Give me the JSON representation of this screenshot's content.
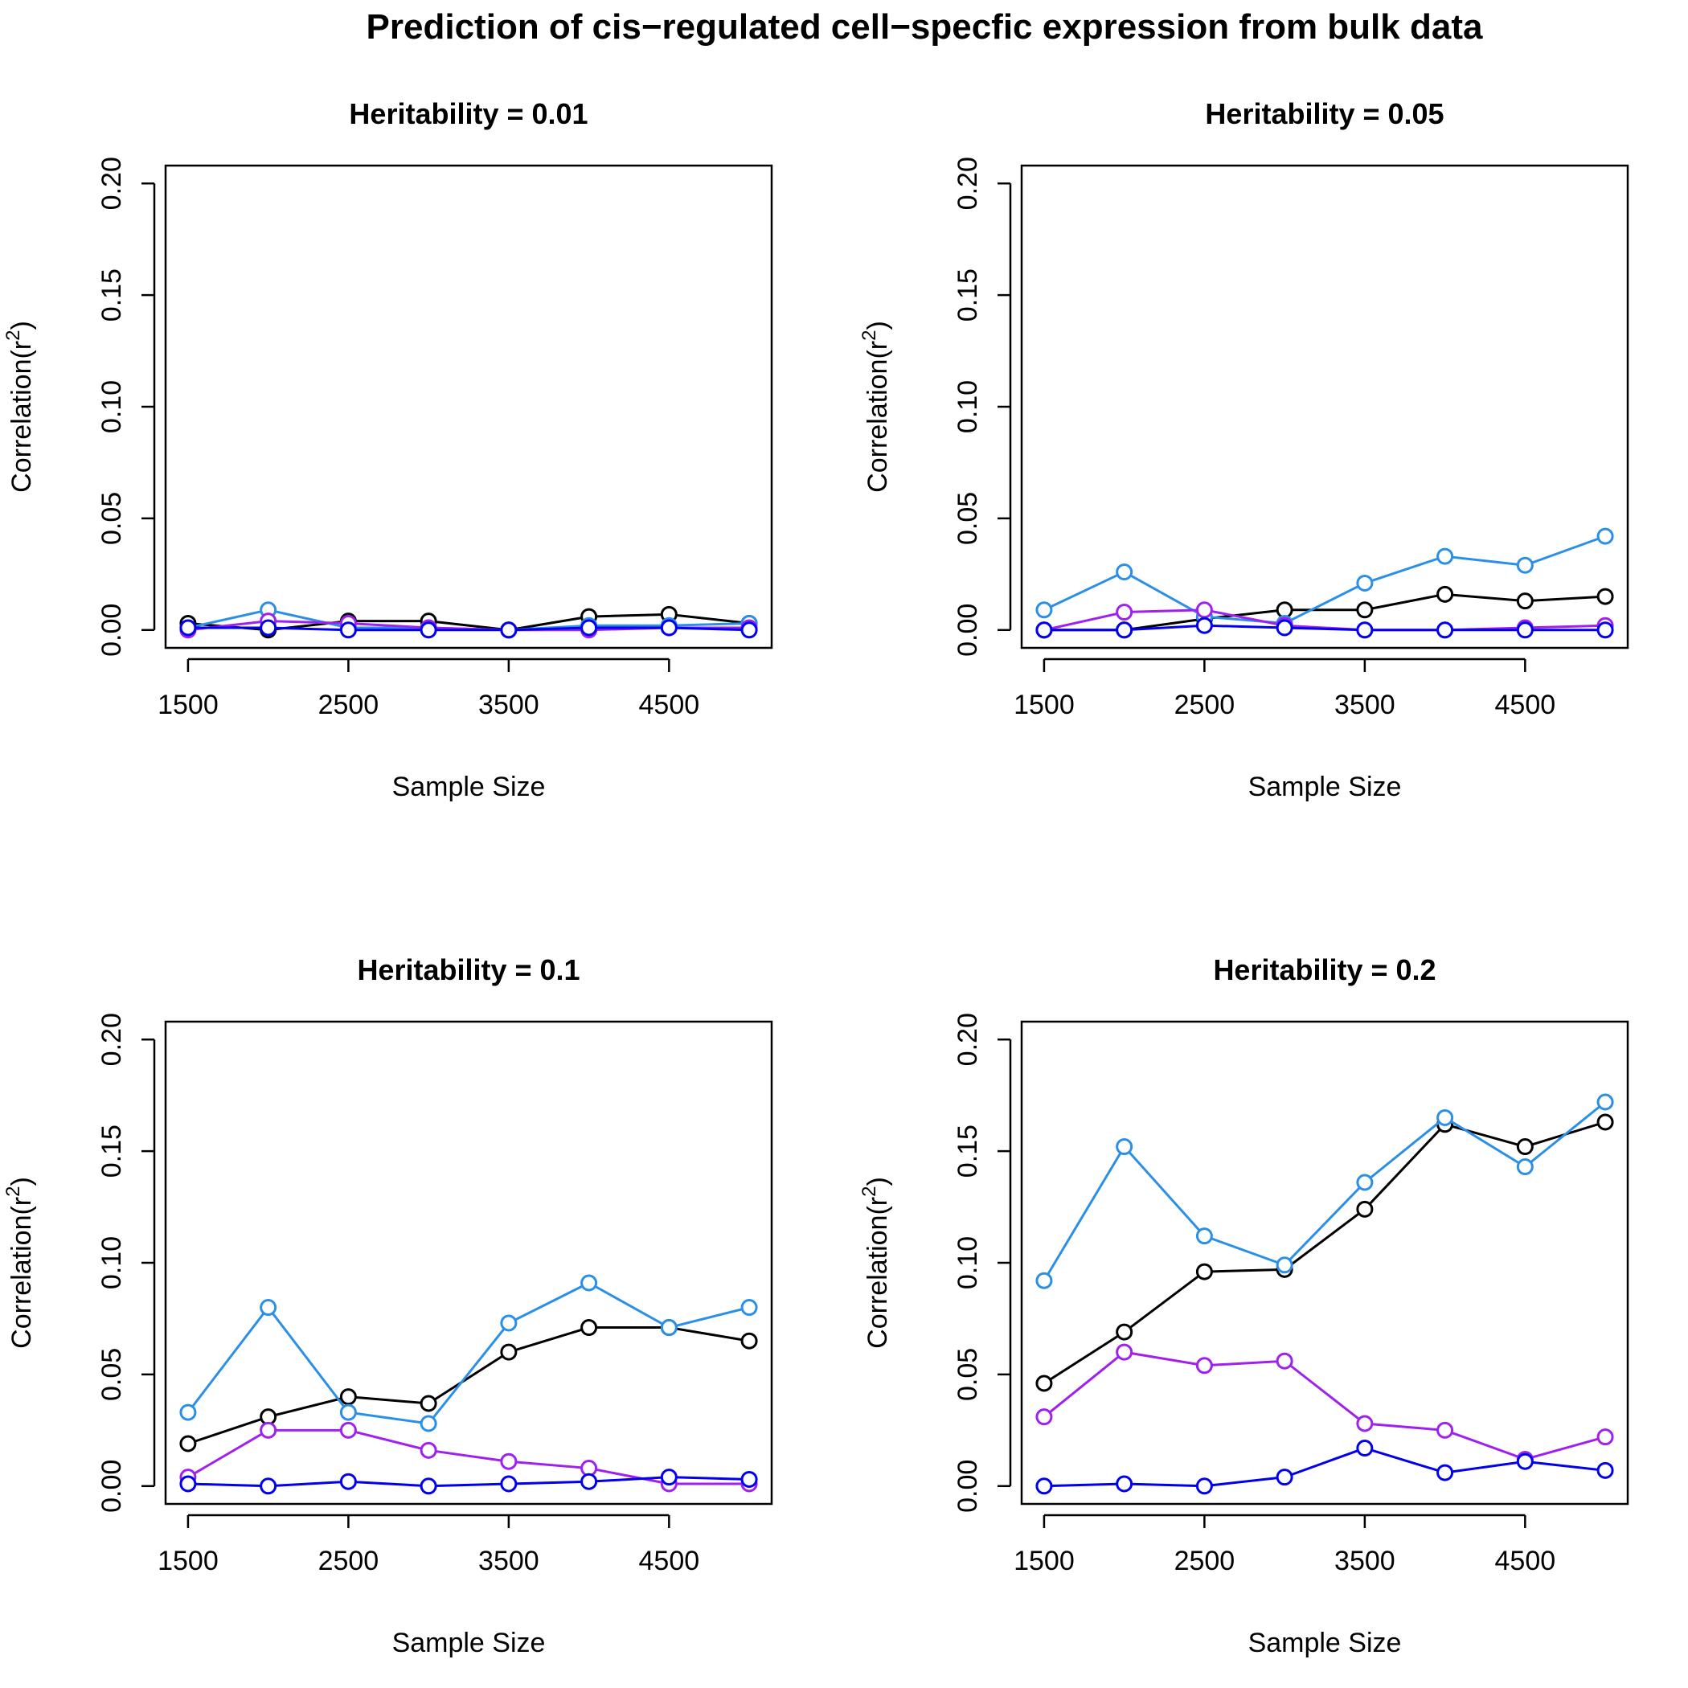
{
  "chart_data": {
    "type": "line",
    "title": "Prediction of cis−regulated cell−specfic expression from bulk data",
    "x": [
      1500,
      2000,
      2500,
      3000,
      3500,
      4000,
      4500,
      5000
    ],
    "x_ticks": [
      "1500",
      "2500",
      "3500",
      "4500"
    ],
    "x_tick_values": [
      1500,
      2500,
      3500,
      4500
    ],
    "y_ticks": [
      "0.00",
      "0.05",
      "0.10",
      "0.15",
      "0.20"
    ],
    "y_tick_values": [
      0,
      0.05,
      0.1,
      0.15,
      0.2
    ],
    "xlim": [
      1500,
      5000
    ],
    "ylim": [
      0,
      0.2
    ],
    "xlabel": "Sample Size",
    "ylabel_base": "Correlation(r",
    "ylabel_sup": "2",
    "ylabel_close": ")",
    "grid": false,
    "legend": "none",
    "series_colors": [
      "#000000",
      "#2B8FE8",
      "#A020F0",
      "#0000EE"
    ],
    "panels": [
      {
        "title": "Heritability =  0.01",
        "series": [
          {
            "color": "#000000",
            "values": [
              0.003,
              0.0,
              0.004,
              0.004,
              0.0,
              0.006,
              0.007,
              0.003
            ]
          },
          {
            "color": "#2B8FE8",
            "values": [
              0.001,
              0.009,
              0.001,
              0.001,
              0.0,
              0.002,
              0.002,
              0.003
            ]
          },
          {
            "color": "#A020F0",
            "values": [
              0.0,
              0.004,
              0.003,
              0.001,
              0.0,
              0.0,
              0.001,
              0.001
            ]
          },
          {
            "color": "#0000EE",
            "values": [
              0.001,
              0.001,
              0.0,
              0.0,
              0.0,
              0.001,
              0.001,
              0.0
            ]
          }
        ]
      },
      {
        "title": "Heritability =  0.05",
        "series": [
          {
            "color": "#000000",
            "values": [
              0.0,
              0.0,
              0.005,
              0.009,
              0.009,
              0.016,
              0.013,
              0.015
            ]
          },
          {
            "color": "#2B8FE8",
            "values": [
              0.009,
              0.026,
              0.006,
              0.003,
              0.021,
              0.033,
              0.029,
              0.042
            ]
          },
          {
            "color": "#A020F0",
            "values": [
              0.0,
              0.008,
              0.009,
              0.002,
              0.0,
              0.0,
              0.001,
              0.002
            ]
          },
          {
            "color": "#0000EE",
            "values": [
              0.0,
              0.0,
              0.002,
              0.001,
              0.0,
              0.0,
              0.0,
              0.0
            ]
          }
        ]
      },
      {
        "title": "Heritability =  0.1",
        "series": [
          {
            "color": "#000000",
            "values": [
              0.019,
              0.031,
              0.04,
              0.037,
              0.06,
              0.071,
              0.071,
              0.065
            ]
          },
          {
            "color": "#2B8FE8",
            "values": [
              0.033,
              0.08,
              0.033,
              0.028,
              0.073,
              0.091,
              0.071,
              0.08
            ]
          },
          {
            "color": "#A020F0",
            "values": [
              0.004,
              0.025,
              0.025,
              0.016,
              0.011,
              0.008,
              0.001,
              0.001
            ]
          },
          {
            "color": "#0000EE",
            "values": [
              0.001,
              0.0,
              0.002,
              0.0,
              0.001,
              0.002,
              0.004,
              0.003
            ]
          }
        ]
      },
      {
        "title": "Heritability =  0.2",
        "series": [
          {
            "color": "#000000",
            "values": [
              0.046,
              0.069,
              0.096,
              0.097,
              0.124,
              0.162,
              0.152,
              0.163
            ]
          },
          {
            "color": "#2B8FE8",
            "values": [
              0.092,
              0.152,
              0.112,
              0.099,
              0.136,
              0.165,
              0.143,
              0.172
            ]
          },
          {
            "color": "#A020F0",
            "values": [
              0.031,
              0.06,
              0.054,
              0.056,
              0.028,
              0.025,
              0.012,
              0.022
            ]
          },
          {
            "color": "#0000EE",
            "values": [
              0.0,
              0.001,
              0.0,
              0.004,
              0.017,
              0.006,
              0.011,
              0.007
            ]
          }
        ]
      }
    ]
  }
}
